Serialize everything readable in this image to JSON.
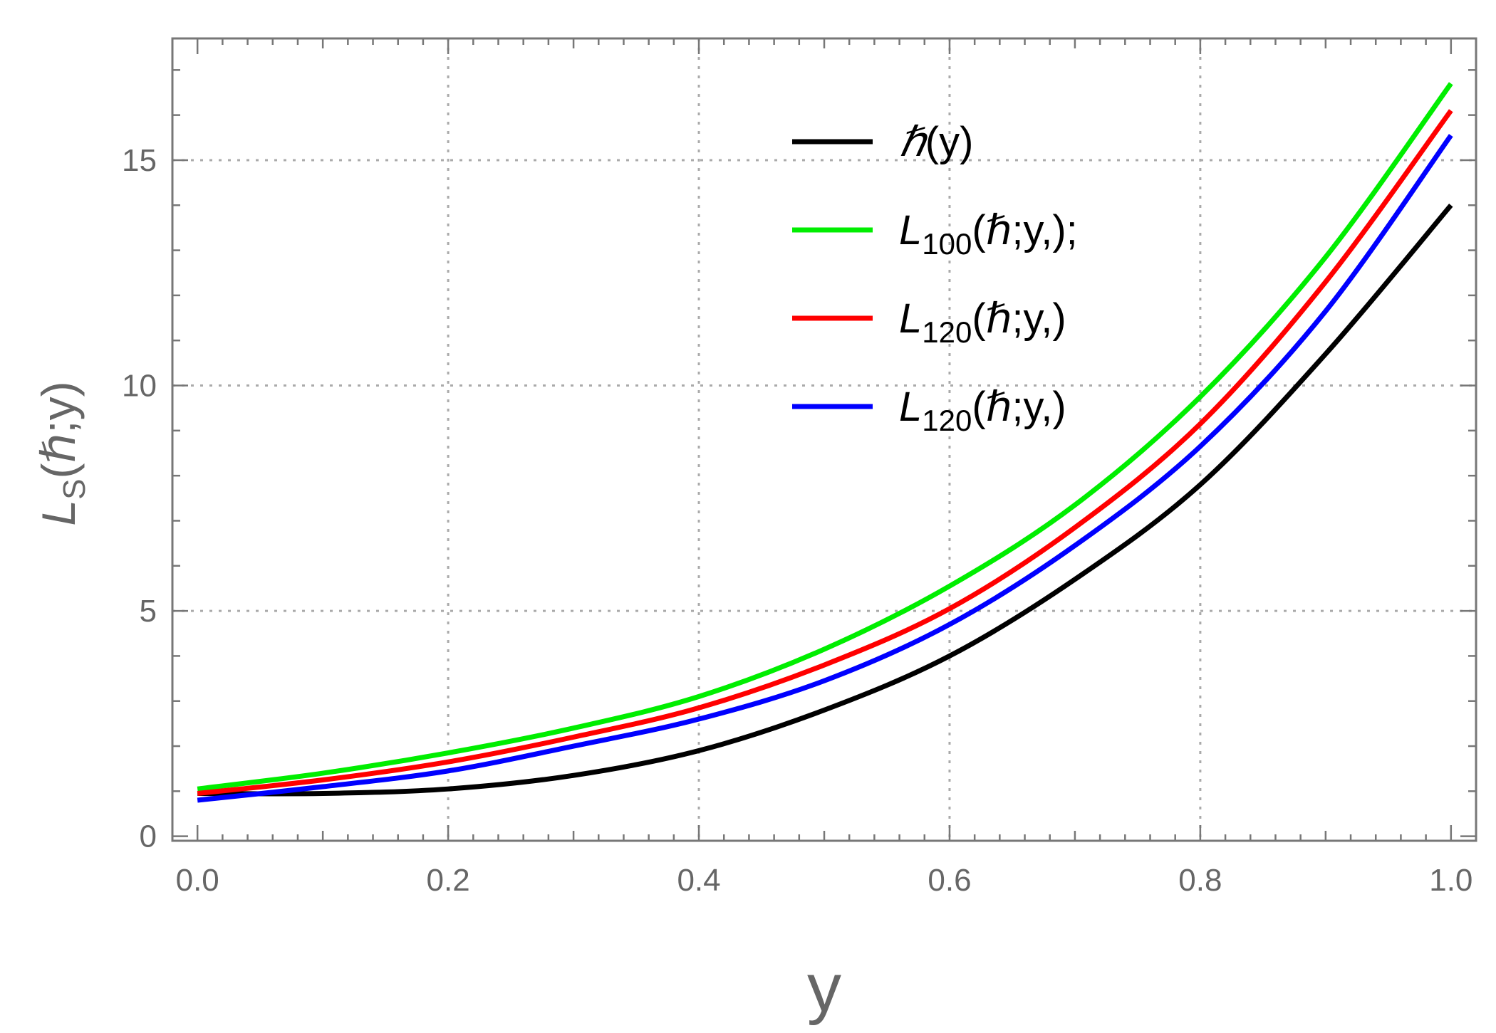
{
  "chart_data": {
    "type": "line",
    "xlabel": "y",
    "ylabel": {
      "main": "L",
      "sub": "S",
      "rest": "(ℏ;y)"
    },
    "xlim": [
      -0.02,
      1.02
    ],
    "ylim": [
      -0.1,
      17.7
    ],
    "x_ticks": [
      0.0,
      0.2,
      0.4,
      0.6,
      0.8,
      1.0
    ],
    "x_tick_labels": [
      "0.0",
      "0.2",
      "0.4",
      "0.6",
      "0.8",
      "1.0"
    ],
    "y_ticks": [
      0,
      5,
      10,
      15
    ],
    "y_tick_labels": [
      "0",
      "5",
      "10",
      "15"
    ],
    "grid": true,
    "legend_position": "top-center",
    "x": [
      0.0,
      0.1,
      0.2,
      0.3,
      0.4,
      0.5,
      0.6,
      0.7,
      0.8,
      0.9,
      1.0
    ],
    "series": [
      {
        "legend": {
          "main": "ℏ",
          "sub": "",
          "rest": "(y)"
        },
        "color": "#000000",
        "values": [
          0.95,
          0.95,
          1.05,
          1.35,
          1.9,
          2.8,
          4.0,
          5.7,
          7.8,
          10.7,
          14.0
        ]
      },
      {
        "legend": {
          "main": "L",
          "sub": "100",
          "rest": "(ℏ;y,);"
        },
        "color": "#00ee00",
        "values": [
          1.05,
          1.4,
          1.85,
          2.4,
          3.1,
          4.15,
          5.55,
          7.35,
          9.75,
          12.85,
          16.7
        ]
      },
      {
        "legend": {
          "main": "L",
          "sub": "120",
          "rest": "(ℏ;y,)"
        },
        "color": "#ff0000",
        "values": [
          0.95,
          1.25,
          1.65,
          2.2,
          2.85,
          3.8,
          5.05,
          6.85,
          9.15,
          12.3,
          16.1
        ]
      },
      {
        "legend": {
          "main": "L",
          "sub": "120",
          "rest": "(ℏ;y,)"
        },
        "color": "#0000ff",
        "values": [
          0.8,
          1.1,
          1.45,
          2.0,
          2.6,
          3.45,
          4.7,
          6.45,
          8.65,
          11.65,
          15.55
        ]
      }
    ]
  }
}
